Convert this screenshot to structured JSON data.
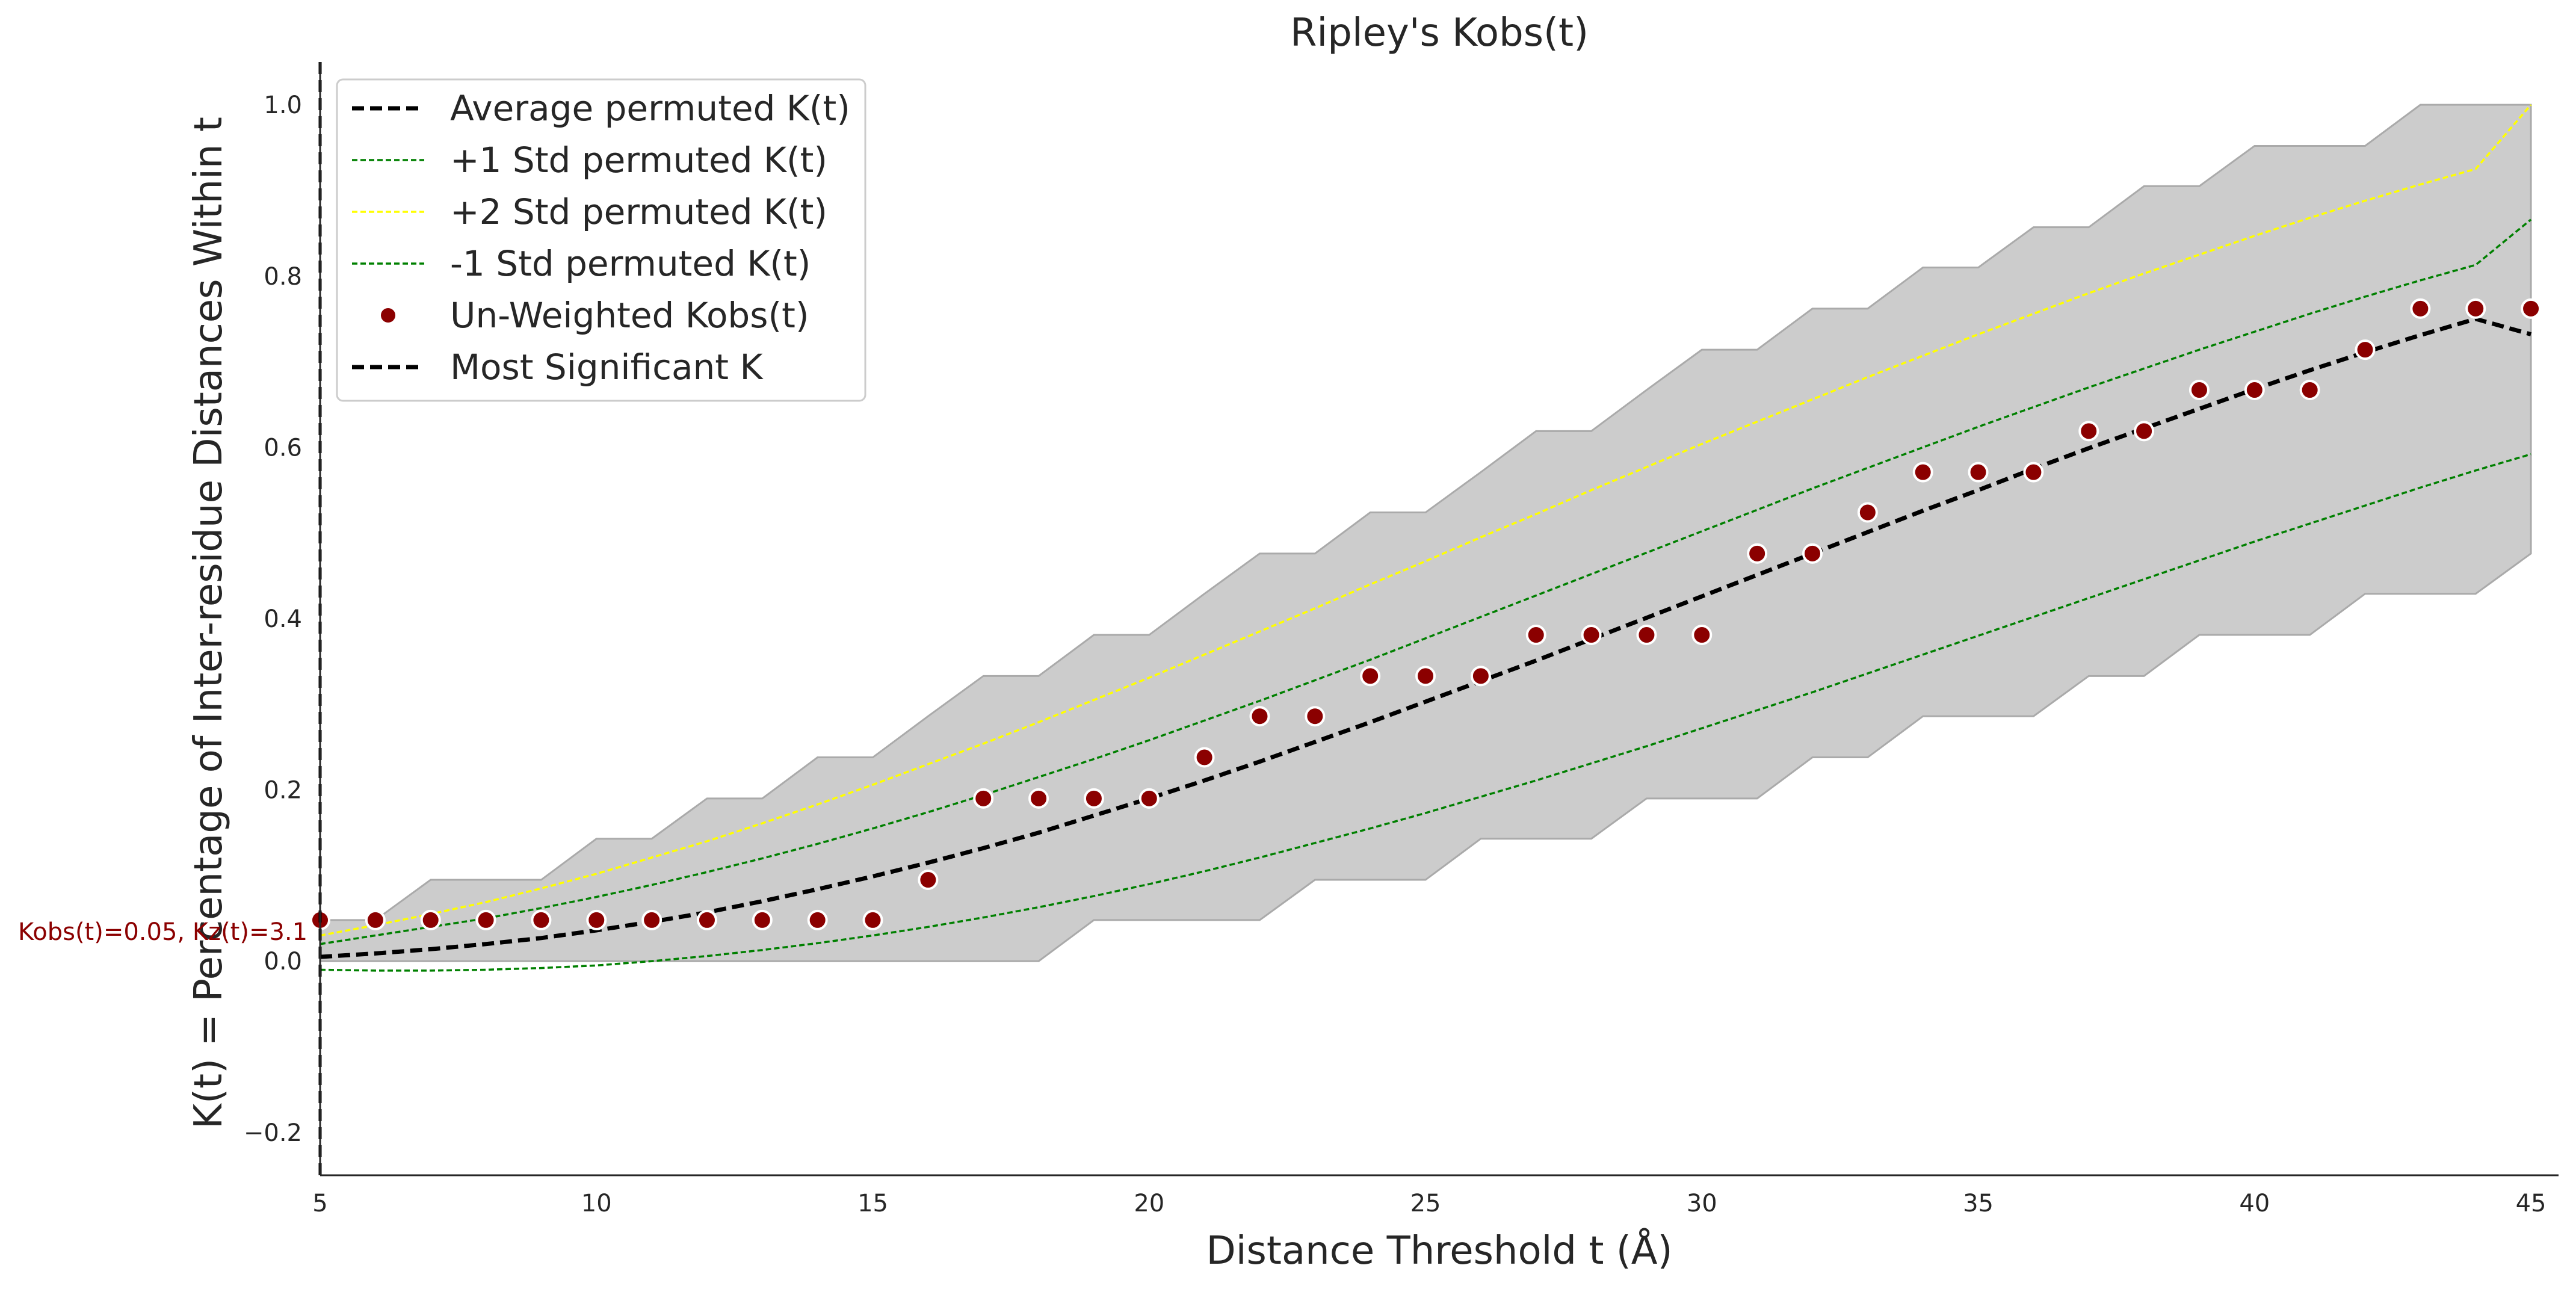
{
  "chart_data": {
    "type": "line",
    "title": "Ripley's Kobs(t)",
    "xlabel": "Distance Threshold t (Å)",
    "ylabel": "K(t) = Percentage of Inter-residue Distances Within t",
    "xlim": [
      5,
      45.5
    ],
    "ylim": [
      -0.25,
      1.05
    ],
    "xticks": [
      5,
      10,
      15,
      20,
      25,
      30,
      35,
      40,
      45
    ],
    "yticks": [
      -0.2,
      0.0,
      0.2,
      0.4,
      0.6,
      0.8,
      1.0
    ],
    "ytick_labels": [
      "−0.2",
      "0.0",
      "0.2",
      "0.4",
      "0.6",
      "0.8",
      "1.0"
    ],
    "grid": false,
    "legend_position": "top-left",
    "x": [
      5,
      6,
      7,
      8,
      9,
      10,
      11,
      12,
      13,
      14,
      15,
      16,
      17,
      18,
      19,
      20,
      21,
      22,
      23,
      24,
      25,
      26,
      27,
      28,
      29,
      30,
      31,
      32,
      33,
      34,
      35,
      36,
      37,
      38,
      39,
      40,
      41,
      42,
      43,
      44,
      45
    ],
    "envelope": {
      "color": "#cccccc",
      "upper": [
        0.048,
        0.048,
        0.095,
        0.095,
        0.095,
        0.143,
        0.143,
        0.19,
        0.19,
        0.238,
        0.238,
        0.286,
        0.333,
        0.333,
        0.381,
        0.381,
        0.429,
        0.476,
        0.476,
        0.524,
        0.524,
        0.571,
        0.619,
        0.619,
        0.667,
        0.714,
        0.714,
        0.762,
        0.762,
        0.81,
        0.81,
        0.857,
        0.857,
        0.905,
        0.905,
        0.952,
        0.952,
        0.952,
        1.0,
        1.0,
        1.0
      ],
      "lower": [
        0.0,
        0.0,
        0.0,
        0.0,
        0.0,
        0.0,
        0.0,
        0.0,
        0.0,
        0.0,
        0.0,
        0.0,
        0.0,
        0.0,
        0.048,
        0.048,
        0.048,
        0.048,
        0.095,
        0.095,
        0.095,
        0.143,
        0.143,
        0.143,
        0.19,
        0.19,
        0.19,
        0.238,
        0.238,
        0.286,
        0.286,
        0.286,
        0.333,
        0.333,
        0.381,
        0.381,
        0.381,
        0.429,
        0.429,
        0.429,
        0.476
      ]
    },
    "series": [
      {
        "name": "Average permuted K(t)",
        "style": "dashed",
        "color": "#000000",
        "values": [
          0.005,
          0.009,
          0.014,
          0.02,
          0.027,
          0.036,
          0.046,
          0.057,
          0.07,
          0.084,
          0.099,
          0.115,
          0.132,
          0.15,
          0.17,
          0.19,
          0.211,
          0.233,
          0.256,
          0.279,
          0.303,
          0.327,
          0.351,
          0.376,
          0.401,
          0.426,
          0.451,
          0.476,
          0.501,
          0.526,
          0.55,
          0.575,
          0.599,
          0.622,
          0.645,
          0.668,
          0.69,
          0.711,
          0.731,
          0.75,
          0.732
        ]
      },
      {
        "name": "+1 Std permuted K(t)",
        "style": "dashed-thin",
        "color": "#008000",
        "values": [
          0.02,
          0.03,
          0.04,
          0.05,
          0.062,
          0.075,
          0.089,
          0.104,
          0.12,
          0.137,
          0.155,
          0.174,
          0.194,
          0.215,
          0.236,
          0.258,
          0.281,
          0.304,
          0.328,
          0.352,
          0.377,
          0.402,
          0.427,
          0.452,
          0.477,
          0.502,
          0.527,
          0.552,
          0.576,
          0.6,
          0.624,
          0.647,
          0.67,
          0.692,
          0.714,
          0.735,
          0.756,
          0.776,
          0.795,
          0.813,
          0.866
        ]
      },
      {
        "name": "+2 Std permuted K(t)",
        "style": "dashed-thin",
        "color": "#ffff00",
        "values": [
          0.03,
          0.042,
          0.055,
          0.069,
          0.085,
          0.102,
          0.121,
          0.14,
          0.161,
          0.183,
          0.206,
          0.23,
          0.254,
          0.279,
          0.305,
          0.331,
          0.358,
          0.385,
          0.412,
          0.44,
          0.467,
          0.495,
          0.522,
          0.55,
          0.577,
          0.604,
          0.63,
          0.656,
          0.682,
          0.707,
          0.732,
          0.756,
          0.78,
          0.803,
          0.825,
          0.847,
          0.868,
          0.888,
          0.907,
          0.925,
          1.0
        ]
      },
      {
        "name": "-1 Std permuted K(t)",
        "style": "dashed-thin",
        "color": "#008000",
        "values": [
          -0.01,
          -0.011,
          -0.011,
          -0.01,
          -0.008,
          -0.005,
          0.0,
          0.006,
          0.013,
          0.021,
          0.03,
          0.04,
          0.051,
          0.063,
          0.076,
          0.09,
          0.105,
          0.121,
          0.138,
          0.155,
          0.173,
          0.192,
          0.211,
          0.231,
          0.251,
          0.272,
          0.293,
          0.314,
          0.336,
          0.358,
          0.38,
          0.402,
          0.424,
          0.446,
          0.468,
          0.49,
          0.511,
          0.532,
          0.553,
          0.573,
          0.592
        ]
      }
    ],
    "scatter": {
      "name": "Un-Weighted Kobs(t)",
      "color": "#8b0000",
      "values": [
        0.048,
        0.048,
        0.048,
        0.048,
        0.048,
        0.048,
        0.048,
        0.048,
        0.048,
        0.048,
        0.048,
        0.095,
        0.19,
        0.19,
        0.19,
        0.19,
        0.238,
        0.286,
        0.286,
        0.333,
        0.333,
        0.333,
        0.381,
        0.381,
        0.381,
        0.381,
        0.476,
        0.476,
        0.524,
        0.571,
        0.571,
        0.571,
        0.619,
        0.619,
        0.667,
        0.667,
        0.667,
        0.714,
        0.762,
        0.762,
        0.762
      ]
    },
    "most_significant": {
      "name": "Most Significant K",
      "x": 5,
      "annotation": "Kobs(t)=0.05, Kz(t)=3.1",
      "annotation_color": "#8b0000"
    }
  }
}
